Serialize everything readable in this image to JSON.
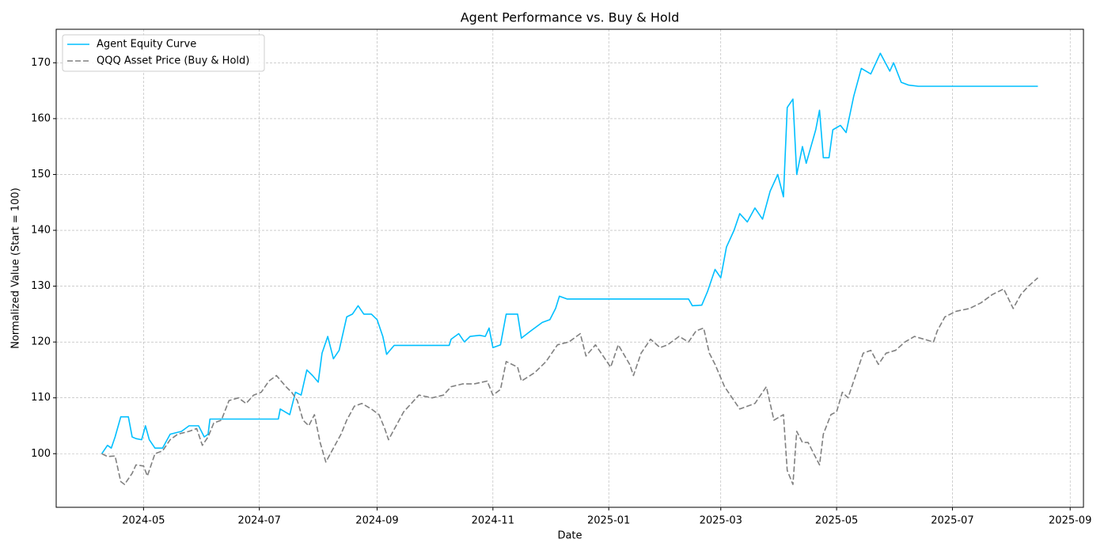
{
  "chart_data": {
    "type": "line",
    "title": "Agent Performance vs. Buy & Hold",
    "x_label": "Date",
    "y_label": "Normalized Value (Start = 100)",
    "grid": true,
    "legend": "upper left",
    "xlim": [
      19798,
      20339
    ],
    "xticks": [
      {
        "value": 19844,
        "label": "2024-05"
      },
      {
        "value": 19905,
        "label": "2024-07"
      },
      {
        "value": 19967,
        "label": "2024-09"
      },
      {
        "value": 20028,
        "label": "2024-11"
      },
      {
        "value": 20089,
        "label": "2025-01"
      },
      {
        "value": 20148,
        "label": "2025-03"
      },
      {
        "value": 20209,
        "label": "2025-05"
      },
      {
        "value": 20270,
        "label": "2025-07"
      },
      {
        "value": 20332,
        "label": "2025-09"
      }
    ],
    "ylim": [
      90.4,
      176
    ],
    "yticks": [
      100,
      110,
      120,
      130,
      140,
      150,
      160,
      170
    ],
    "series": [
      {
        "name": "Agent Equity Curve",
        "color": "#00bfff",
        "linestyle": "solid",
        "x": [
          19822,
          19825,
          19827,
          19829,
          19832,
          19836,
          19838,
          19840,
          19843,
          19845,
          19847,
          19850,
          19854,
          19858,
          19864,
          19868,
          19873,
          19876,
          19878,
          19879,
          19915,
          19916,
          19921,
          19924,
          19927,
          19930,
          19933,
          19936,
          19938,
          19941,
          19944,
          19947,
          19951,
          19954,
          19957,
          19960,
          19964,
          19967,
          19970,
          19972,
          19976,
          20005,
          20006,
          20010,
          20013,
          20016,
          20021,
          20024,
          20026,
          20028,
          20032,
          20035,
          20041,
          20043,
          20048,
          20054,
          20058,
          20061,
          20063,
          20067,
          20131,
          20133,
          20138,
          20141,
          20145,
          20148,
          20151,
          20155,
          20158,
          20162,
          20166,
          20170,
          20174,
          20178,
          20181,
          20183,
          20186,
          20188,
          20191,
          20193,
          20198,
          20200,
          20202,
          20205,
          20207,
          20211,
          20214,
          20218,
          20222,
          20227,
          20229,
          20232,
          20237,
          20239,
          20243,
          20247,
          20252,
          20315
        ],
        "values": [
          100,
          101.5,
          101,
          103,
          106.6,
          106.6,
          103,
          102.7,
          102.5,
          105,
          102.5,
          101,
          101,
          103.5,
          104,
          105,
          105,
          103,
          103.5,
          106.2,
          106.2,
          108,
          107,
          111,
          110.5,
          115,
          114,
          112.8,
          118,
          121,
          117,
          118.5,
          124.5,
          125,
          126.5,
          125,
          125,
          124,
          121,
          117.8,
          119.4,
          119.4,
          120.5,
          121.5,
          120,
          121,
          121.2,
          121,
          122.5,
          119,
          119.5,
          125,
          125,
          120.7,
          122,
          123.5,
          124,
          126,
          128.2,
          127.7,
          127.7,
          126.5,
          126.6,
          129,
          133,
          131.5,
          137,
          140,
          143,
          141.5,
          144,
          142,
          147,
          150,
          146,
          162,
          163.5,
          150,
          155,
          152,
          158,
          161.5,
          153,
          153,
          158,
          158.8,
          157.5,
          164,
          169,
          168,
          169.5,
          171.7,
          168.5,
          170,
          166.5,
          166,
          165.8,
          165.8
        ]
      },
      {
        "name": "QQQ Asset Price (Buy & Hold)",
        "color": "#808080",
        "linestyle": "dashed",
        "x": [
          19822,
          19825,
          19829,
          19832,
          19834,
          19838,
          19840,
          19844,
          19846,
          19850,
          19854,
          19858,
          19862,
          19868,
          19872,
          19875,
          19878,
          19881,
          19885,
          19889,
          19894,
          19898,
          19902,
          19906,
          19910,
          19914,
          19919,
          19922,
          19925,
          19928,
          19931,
          19934,
          19937,
          19940,
          19944,
          19948,
          19951,
          19955,
          19959,
          19964,
          19968,
          19971,
          19973,
          19977,
          19981,
          19985,
          19989,
          19996,
          20002,
          20006,
          20012,
          20018,
          20025,
          20028,
          20032,
          20035,
          20041,
          20043,
          20050,
          20056,
          20062,
          20068,
          20074,
          20077,
          20082,
          20087,
          20090,
          20094,
          20100,
          20102,
          20106,
          20111,
          20116,
          20120,
          20126,
          20131,
          20135,
          20139,
          20142,
          20145,
          20150,
          20154,
          20158,
          20162,
          20166,
          20169,
          20172,
          20176,
          20181,
          20183,
          20186,
          20188,
          20191,
          20194,
          20197,
          20200,
          20202,
          20206,
          20209,
          20212,
          20215,
          20218,
          20223,
          20227,
          20231,
          20235,
          20240,
          20245,
          20250,
          20255,
          20260,
          20262,
          20266,
          20272,
          20279,
          20285,
          20291,
          20297,
          20302,
          20306,
          20310,
          20315
        ],
        "values": [
          100,
          99.5,
          99.6,
          95,
          94.5,
          96.5,
          98,
          97.8,
          96,
          100,
          100.5,
          102.5,
          103.5,
          104,
          104.5,
          101.5,
          103,
          105.5,
          106,
          109.5,
          110,
          109,
          110.5,
          111,
          113,
          114,
          112,
          111,
          109.5,
          106,
          105,
          107,
          102,
          98.5,
          101,
          103.5,
          106,
          108.5,
          109,
          108,
          107,
          104.5,
          102.5,
          105,
          107.5,
          109,
          110.5,
          110,
          110.5,
          112,
          112.5,
          112.5,
          113,
          110.5,
          111.5,
          116.5,
          115.5,
          113,
          114.5,
          116.5,
          119.5,
          120,
          121.5,
          117.5,
          119.5,
          117,
          115.5,
          119.5,
          116,
          114,
          118,
          120.5,
          119,
          119.5,
          121,
          120,
          122,
          122.5,
          118,
          116,
          112,
          110,
          108,
          108.5,
          109,
          110.5,
          112,
          106,
          107,
          97,
          94.5,
          104,
          102,
          102,
          100,
          98,
          103.5,
          107,
          107.5,
          111,
          110,
          113,
          118,
          118.5,
          116,
          118,
          118.5,
          120,
          121,
          120.5,
          120,
          122,
          124.5,
          125.5,
          126,
          127,
          128.5,
          129.5,
          126,
          128.5,
          130,
          131.5
        ]
      }
    ]
  }
}
